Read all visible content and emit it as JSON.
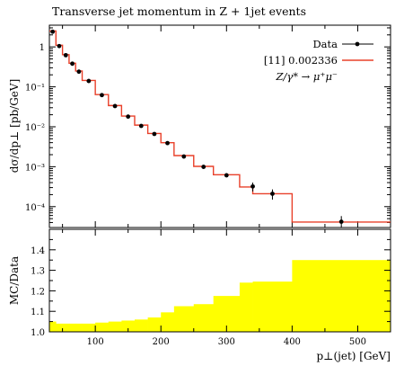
{
  "title": "Transverse jet momentum in Z + 1jet events",
  "chart_data": [
    {
      "type": "line",
      "panel": "main",
      "ylabel": "dσ/dp⊥ [pb/GeV]",
      "yscale": "log",
      "xlim": [
        30,
        550
      ],
      "ylim": [
        3e-05,
        3.5
      ],
      "x_ticks": [
        100,
        200,
        300,
        400,
        500
      ],
      "y_ticks": [
        {
          "value": 1,
          "label": "1"
        },
        {
          "value": 0.1,
          "label": "10⁻¹"
        },
        {
          "value": 0.01,
          "label": "10⁻²"
        },
        {
          "value": 0.001,
          "label": "10⁻³"
        },
        {
          "value": 0.0001,
          "label": "10⁻⁴"
        }
      ],
      "legend_position": "top-right",
      "series": [
        {
          "name": "Data",
          "style": "points-with-errors",
          "color": "#000000",
          "x": [
            35,
            45,
            55,
            65,
            75,
            90,
            110,
            130,
            150,
            170,
            190,
            210,
            235,
            265,
            300,
            340,
            370,
            475
          ],
          "y": [
            2.4,
            1.05,
            0.62,
            0.38,
            0.24,
            0.14,
            0.062,
            0.033,
            0.018,
            0.0105,
            0.0066,
            0.0039,
            0.0018,
            0.00099,
            0.00061,
            0.00032,
            0.00021,
            4.2e-05
          ],
          "err_low": [
            0.15,
            0.05,
            0.03,
            0.02,
            0.012,
            0.006,
            0.003,
            0.002,
            0.001,
            0.0007,
            0.0004,
            0.0003,
            0.00013,
            8e-05,
            7e-05,
            8e-05,
            6e-05,
            1.2e-05
          ],
          "err_high": [
            0.15,
            0.05,
            0.03,
            0.02,
            0.012,
            0.006,
            0.003,
            0.002,
            0.001,
            0.0007,
            0.0004,
            0.0003,
            0.00013,
            8e-05,
            7e-05,
            8e-05,
            6e-05,
            1.6e-05
          ]
        },
        {
          "name": "[11] 0.002336",
          "style": "histogram",
          "color": "#e8402a",
          "bin_edges": [
            30,
            40,
            50,
            60,
            70,
            80,
            100,
            120,
            140,
            160,
            180,
            200,
            220,
            250,
            280,
            320,
            340,
            400,
            550
          ],
          "values": [
            2.5,
            1.1,
            0.64,
            0.39,
            0.25,
            0.145,
            0.064,
            0.034,
            0.0185,
            0.011,
            0.0068,
            0.004,
            0.0019,
            0.00102,
            0.00063,
            0.00031,
            0.00021,
            4.1e-05
          ]
        }
      ]
    },
    {
      "type": "area",
      "panel": "ratio",
      "xlabel": "p⊥(jet) [GeV]",
      "ylabel": "MC/Data",
      "xlim": [
        30,
        550
      ],
      "ylim": [
        1.0,
        1.5
      ],
      "x_ticks": [
        100,
        200,
        300,
        400,
        500
      ],
      "y_ticks": [
        1.0,
        1.1,
        1.2,
        1.3,
        1.4
      ],
      "series": [
        {
          "name": "",
          "color": "#ffff00",
          "bin_edges": [
            30,
            40,
            50,
            60,
            70,
            80,
            100,
            120,
            140,
            160,
            180,
            200,
            220,
            250,
            280,
            320,
            340,
            400,
            550
          ],
          "band_upper": [
            1.05,
            1.04,
            1.04,
            1.04,
            1.04,
            1.04,
            1.045,
            1.05,
            1.055,
            1.06,
            1.07,
            1.095,
            1.125,
            1.135,
            1.175,
            1.24,
            1.245,
            1.35
          ]
        }
      ]
    }
  ],
  "legend": {
    "data_label": "Data",
    "mc_label": "[11] 0.002336",
    "process_label": "Z/γ* → μ⁺μ⁻"
  }
}
